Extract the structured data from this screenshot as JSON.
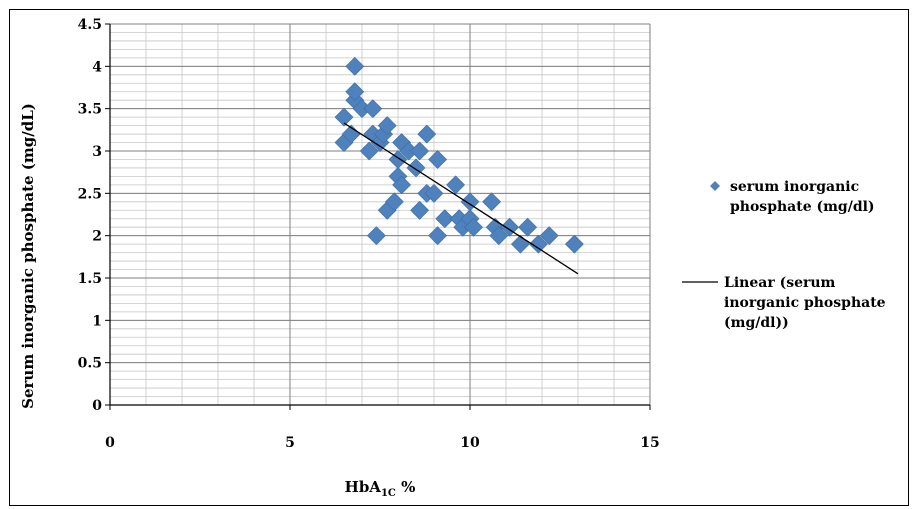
{
  "chart_data": {
    "type": "scatter",
    "title": "",
    "xlabel": "HbA",
    "xlabel_sub": "1C",
    "xlabel_suffix": " %",
    "ylabel": "Serum inorganic phosphate (mg/dL)",
    "xlim": [
      0,
      15
    ],
    "ylim": [
      0,
      4.5
    ],
    "x_ticks": [
      "0",
      "5",
      "10",
      "15"
    ],
    "y_ticks": [
      "0",
      "0.5",
      "1",
      "1.5",
      "2",
      "2.5",
      "3",
      "3.5",
      "4",
      "4.5"
    ],
    "grid": true,
    "legend_position": "right",
    "marker_color": "#4f81bd",
    "trend_color": "#000000",
    "series": [
      {
        "name": "serum inorganic phosphate (mg/dl)",
        "points": [
          [
            6.5,
            3.1
          ],
          [
            6.5,
            3.4
          ],
          [
            6.7,
            3.2
          ],
          [
            6.8,
            3.6
          ],
          [
            6.8,
            3.7
          ],
          [
            6.8,
            4.0
          ],
          [
            7.0,
            3.5
          ],
          [
            7.2,
            3.0
          ],
          [
            7.3,
            3.2
          ],
          [
            7.3,
            3.5
          ],
          [
            7.4,
            2.0
          ],
          [
            7.5,
            3.1
          ],
          [
            7.6,
            3.2
          ],
          [
            7.7,
            3.3
          ],
          [
            7.7,
            2.3
          ],
          [
            7.9,
            2.4
          ],
          [
            8.0,
            2.7
          ],
          [
            8.0,
            2.9
          ],
          [
            8.1,
            2.6
          ],
          [
            8.1,
            3.1
          ],
          [
            8.3,
            3.0
          ],
          [
            8.5,
            2.8
          ],
          [
            8.6,
            2.3
          ],
          [
            8.6,
            3.0
          ],
          [
            8.8,
            2.5
          ],
          [
            8.8,
            3.2
          ],
          [
            9.0,
            2.5
          ],
          [
            9.1,
            2.9
          ],
          [
            9.1,
            2.0
          ],
          [
            9.3,
            2.2
          ],
          [
            9.6,
            2.6
          ],
          [
            9.7,
            2.2
          ],
          [
            9.8,
            2.1
          ],
          [
            10.0,
            2.4
          ],
          [
            10.0,
            2.2
          ],
          [
            10.1,
            2.1
          ],
          [
            10.6,
            2.4
          ],
          [
            10.7,
            2.1
          ],
          [
            10.8,
            2.0
          ],
          [
            11.1,
            2.1
          ],
          [
            11.4,
            1.9
          ],
          [
            11.6,
            2.1
          ],
          [
            11.9,
            1.9
          ],
          [
            12.2,
            2.0
          ],
          [
            12.9,
            1.9
          ]
        ]
      }
    ],
    "trendline": {
      "name": "Linear (serum inorganic phosphate (mg/dl))",
      "x": [
        6.5,
        13.0
      ],
      "y": [
        3.33,
        1.55
      ]
    }
  },
  "legend": {
    "series_lines": [
      "serum inorganic",
      "phosphate (mg/dl)"
    ],
    "trend_lines": [
      "Linear (serum",
      "inorganic phosphate",
      "(mg/dl))"
    ]
  }
}
